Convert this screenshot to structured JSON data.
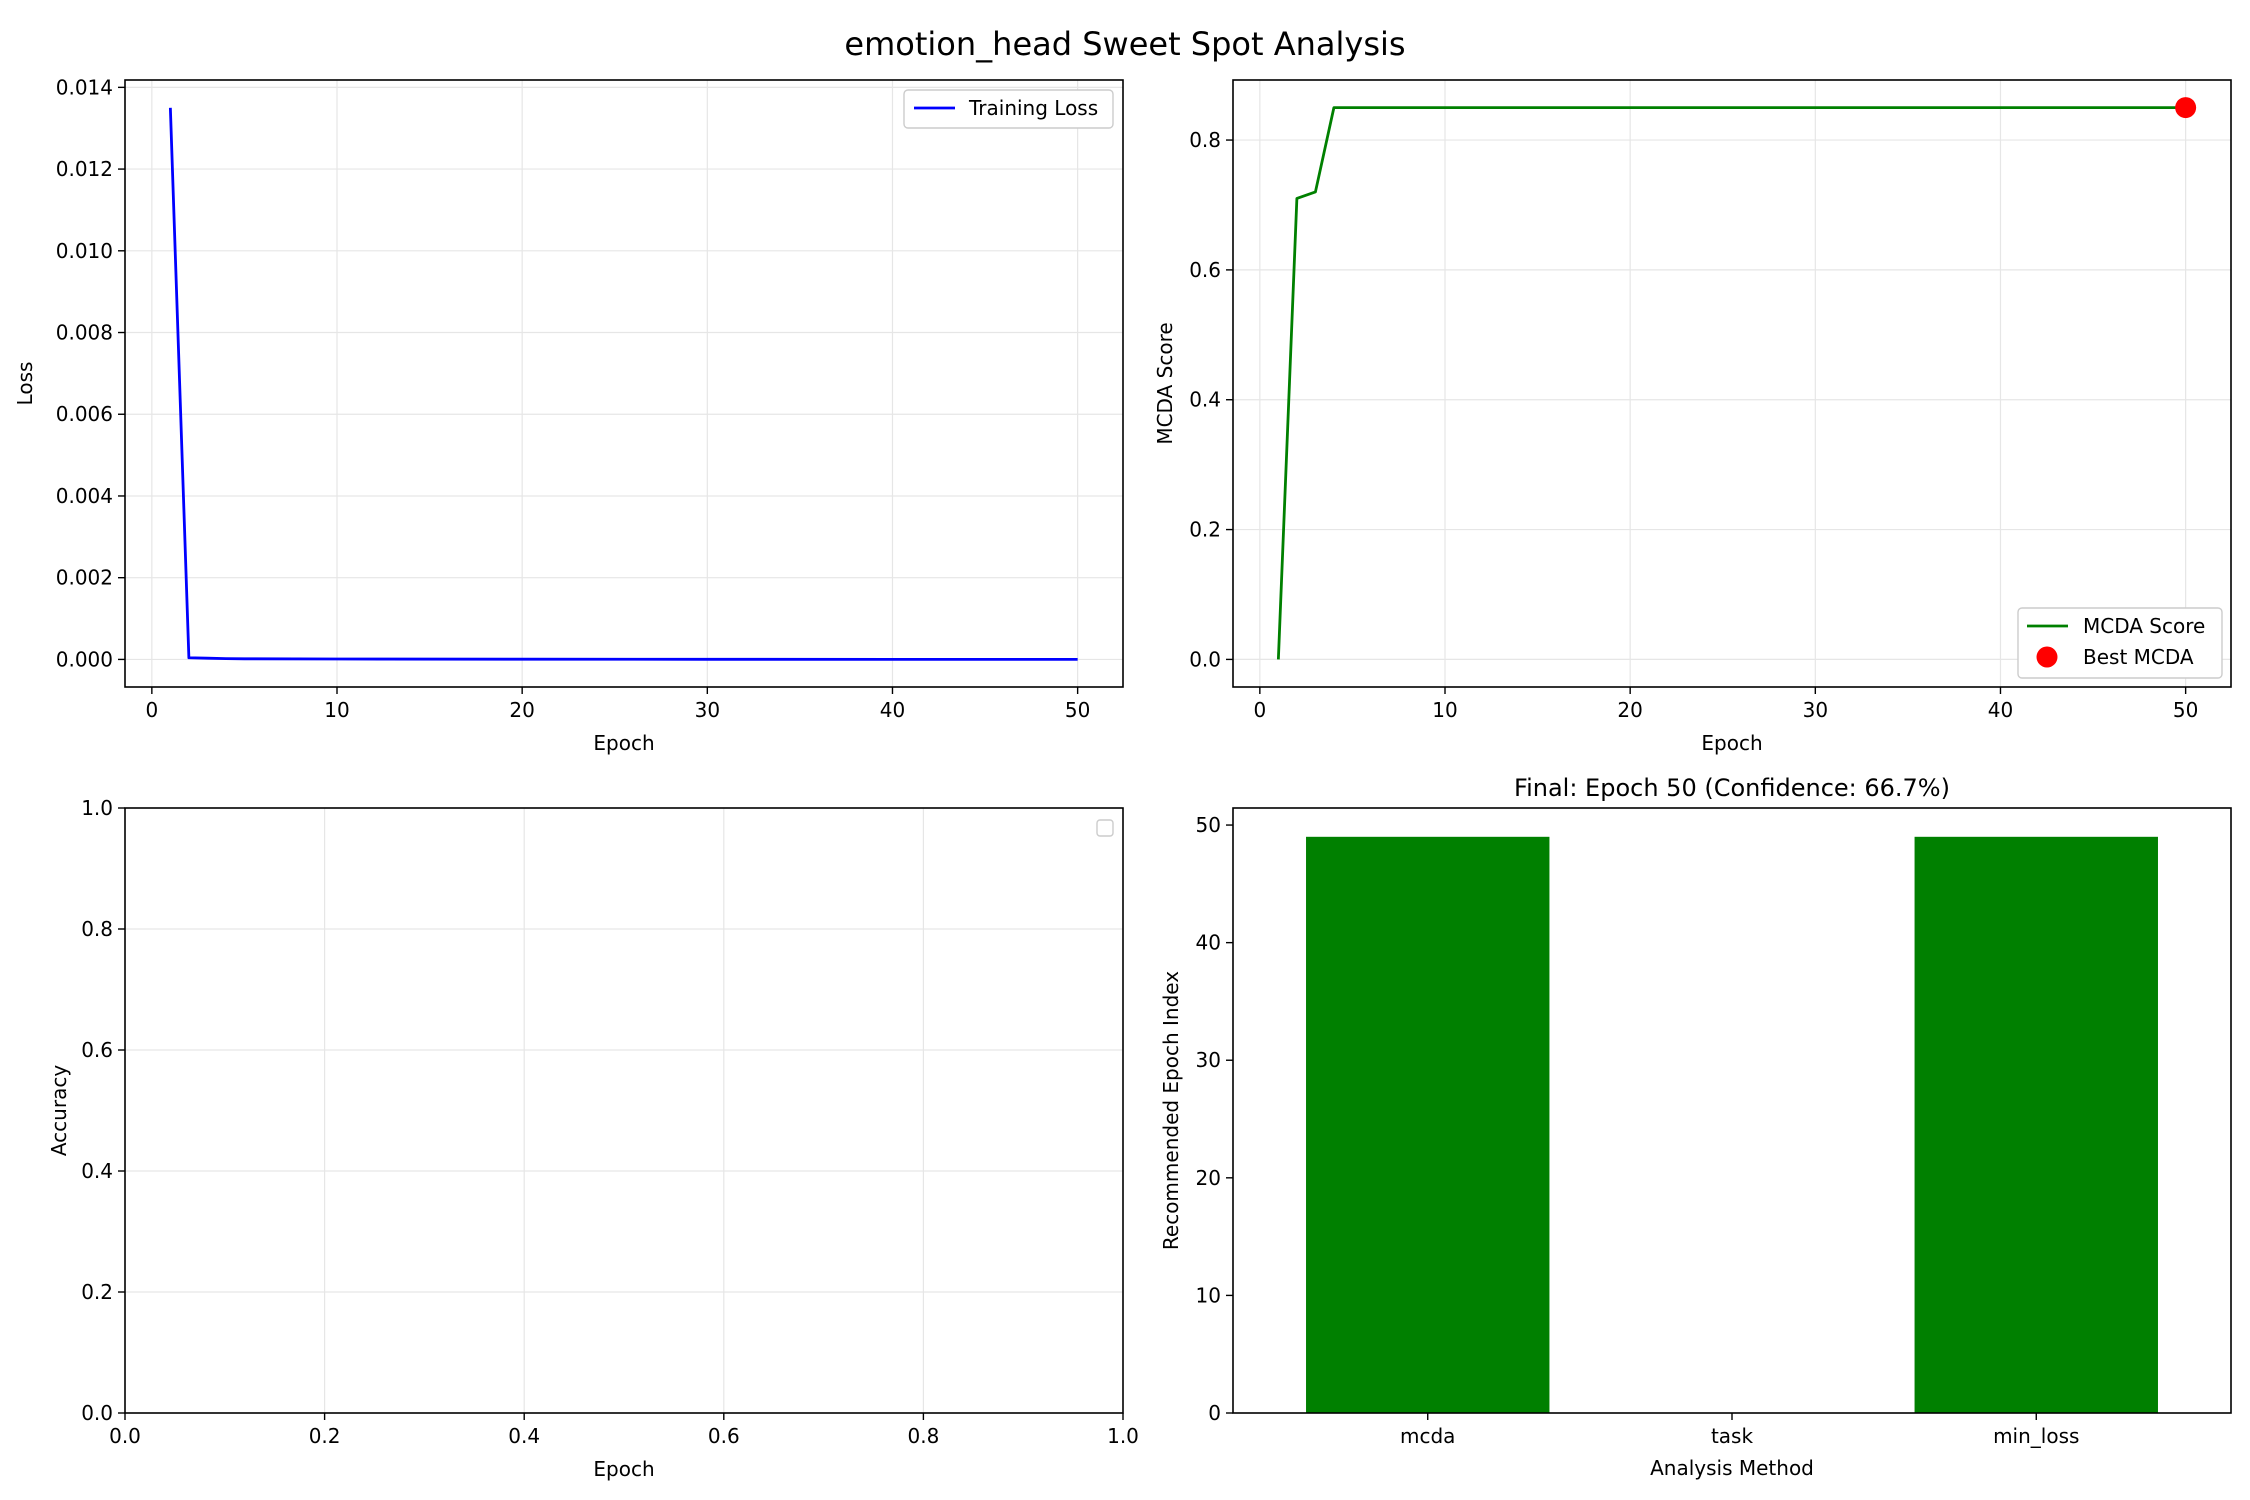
{
  "figure": {
    "title": "emotion_head Sweet Spot Analysis"
  },
  "colors": {
    "loss_line": "#0000ff",
    "mcda_line": "#008000",
    "best_marker": "#ff0000",
    "bar": "#008000",
    "grid": "#e6e6e6"
  },
  "chart_data": [
    {
      "type": "line",
      "title": "",
      "xlabel": "Epoch",
      "ylabel": "Loss",
      "xlim": [
        -1.45,
        52.45
      ],
      "ylim": [
        -0.000675,
        0.01418
      ],
      "xticks": [
        0,
        10,
        20,
        30,
        40,
        50
      ],
      "yticks": [
        0,
        0.002,
        0.004,
        0.006,
        0.008,
        0.01,
        0.012,
        0.014
      ],
      "ytick_labels": [
        "0.000",
        "0.002",
        "0.004",
        "0.006",
        "0.008",
        "0.010",
        "0.012",
        "0.014"
      ],
      "grid": true,
      "legend": "upper right",
      "series": [
        {
          "name": "Training Loss",
          "x": [
            1,
            2,
            3,
            4,
            5,
            10,
            20,
            30,
            40,
            50
          ],
          "y": [
            0.0135,
            4e-05,
            3e-05,
            2e-05,
            1.5e-05,
            1e-05,
            5e-06,
            3e-06,
            2e-06,
            1e-06
          ]
        }
      ]
    },
    {
      "type": "line",
      "title": "",
      "xlabel": "Epoch",
      "ylabel": "MCDA Score",
      "xlim": [
        -1.45,
        52.45
      ],
      "ylim": [
        -0.0425,
        0.8925
      ],
      "xticks": [
        0,
        10,
        20,
        30,
        40,
        50
      ],
      "yticks": [
        0,
        0.2,
        0.4,
        0.6,
        0.8
      ],
      "ytick_labels": [
        "0.0",
        "0.2",
        "0.4",
        "0.6",
        "0.8"
      ],
      "grid": true,
      "legend": "lower right",
      "series": [
        {
          "name": "MCDA Score",
          "x": [
            1,
            2,
            3,
            4,
            5,
            10,
            20,
            30,
            40,
            50
          ],
          "y": [
            0.0,
            0.71,
            0.72,
            0.85,
            0.85,
            0.85,
            0.85,
            0.85,
            0.85,
            0.85
          ]
        },
        {
          "name": "Best MCDA",
          "type": "scatter",
          "x": [
            50
          ],
          "y": [
            0.85
          ]
        }
      ]
    },
    {
      "type": "line",
      "title": "",
      "xlabel": "Epoch",
      "ylabel": "Accuracy",
      "xlim": [
        0,
        1
      ],
      "ylim": [
        0,
        1
      ],
      "xticks": [
        0,
        0.2,
        0.4,
        0.6,
        0.8,
        1.0
      ],
      "yticks": [
        0,
        0.2,
        0.4,
        0.6,
        0.8,
        1.0
      ],
      "xtick_labels": [
        "0.0",
        "0.2",
        "0.4",
        "0.6",
        "0.8",
        "1.0"
      ],
      "ytick_labels": [
        "0.0",
        "0.2",
        "0.4",
        "0.6",
        "0.8",
        "1.0"
      ],
      "grid": true,
      "legend": "upper right (empty)",
      "series": []
    },
    {
      "type": "bar",
      "title": "Final: Epoch 50 (Confidence: 66.7%)",
      "xlabel": "Analysis Method",
      "ylabel": "Recommended Epoch Index",
      "categories": [
        "mcda",
        "task",
        "min_loss"
      ],
      "values": [
        49,
        0,
        49
      ],
      "ylim": [
        0,
        51.45
      ],
      "yticks": [
        0,
        10,
        20,
        30,
        40,
        50
      ],
      "grid": false
    }
  ]
}
